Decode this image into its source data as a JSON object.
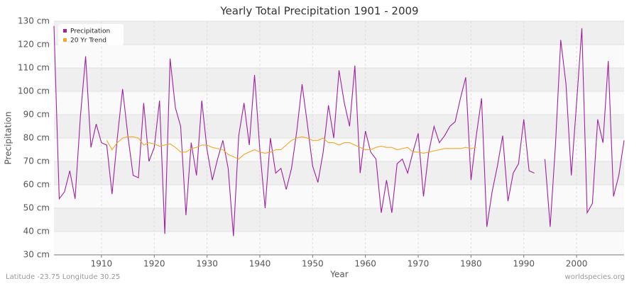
{
  "chart_data": {
    "type": "line",
    "title": "Yearly Total Precipitation 1901 - 2009",
    "x_label": "Year",
    "y_label": "Precipitation",
    "footer_left": "Latitude -23.75 Longitude 30.25",
    "footer_right": "worldspecies.org",
    "x": [
      1901,
      1902,
      1903,
      1904,
      1905,
      1906,
      1907,
      1908,
      1909,
      1910,
      1911,
      1912,
      1913,
      1914,
      1915,
      1916,
      1917,
      1918,
      1919,
      1920,
      1921,
      1922,
      1923,
      1924,
      1925,
      1926,
      1927,
      1928,
      1929,
      1930,
      1931,
      1932,
      1933,
      1934,
      1935,
      1936,
      1937,
      1938,
      1939,
      1940,
      1941,
      1942,
      1943,
      1944,
      1945,
      1946,
      1947,
      1948,
      1949,
      1950,
      1951,
      1952,
      1953,
      1954,
      1955,
      1956,
      1957,
      1958,
      1959,
      1960,
      1961,
      1962,
      1963,
      1964,
      1965,
      1966,
      1967,
      1968,
      1969,
      1970,
      1971,
      1972,
      1973,
      1974,
      1975,
      1976,
      1977,
      1978,
      1979,
      1980,
      1981,
      1982,
      1983,
      1984,
      1985,
      1986,
      1987,
      1988,
      1989,
      1990,
      1991,
      1992,
      1993,
      1994,
      1995,
      1996,
      1997,
      1998,
      1999,
      2000,
      2001,
      2002,
      2003,
      2004,
      2005,
      2006,
      2007,
      2008,
      2009
    ],
    "series": [
      {
        "name": "Precipitation",
        "color": "#a020a0",
        "values": [
          128,
          54,
          57,
          66,
          54,
          89,
          115,
          76,
          86,
          78,
          77,
          56,
          80,
          101,
          81,
          64,
          63,
          95,
          70,
          76,
          96,
          39,
          114,
          93,
          85,
          47,
          78,
          64,
          96,
          75,
          62,
          71,
          79,
          67,
          38,
          81,
          95,
          77,
          107,
          75,
          50,
          80,
          65,
          67,
          58,
          67,
          83,
          103,
          86,
          68,
          61,
          74,
          94,
          80,
          109,
          95,
          85,
          111,
          65,
          83,
          74,
          71,
          48,
          62,
          48,
          69,
          71,
          65,
          74,
          82,
          55,
          74,
          85,
          78,
          81,
          85,
          87,
          97,
          106,
          62,
          81,
          97,
          42,
          57,
          68,
          81,
          53,
          65,
          69,
          88,
          66,
          65,
          null,
          71,
          42,
          77,
          122,
          103,
          64,
          95,
          127,
          48,
          52,
          88,
          78,
          113,
          55,
          64,
          79
        ]
      },
      {
        "name": "20 Yr Trend",
        "color": "#f5a623",
        "values": [
          null,
          null,
          null,
          null,
          null,
          null,
          null,
          null,
          null,
          null,
          79,
          75,
          78,
          80,
          80.5,
          80.5,
          80,
          77,
          78,
          77.5,
          76.5,
          77,
          77.5,
          76,
          74,
          74,
          75.5,
          76,
          77,
          77,
          76,
          75.5,
          75,
          73,
          72,
          71,
          73,
          74,
          75,
          74,
          73.5,
          74,
          75,
          75,
          77,
          79,
          80,
          80.5,
          80,
          79,
          79,
          80,
          78,
          78,
          77,
          78,
          78,
          77,
          76,
          75,
          75,
          76,
          76.5,
          76,
          76,
          75,
          75.5,
          76,
          74,
          74,
          73.5,
          74,
          74.5,
          75,
          75.5,
          75.5,
          75.5,
          75.5,
          76,
          75.5,
          76,
          null,
          null,
          null,
          null,
          null,
          null,
          null,
          null,
          null,
          null,
          null,
          null,
          null,
          null,
          null,
          null,
          null,
          null,
          null,
          null,
          null,
          null,
          null,
          null,
          null,
          null,
          null,
          null
        ]
      }
    ],
    "xlim": [
      1901,
      2009
    ],
    "ylim": [
      30,
      130
    ],
    "xticks": [
      1910,
      1920,
      1930,
      1940,
      1950,
      1960,
      1970,
      1980,
      1990,
      2000
    ],
    "yticks": [
      {
        "value": 30,
        "label": "30 cm"
      },
      {
        "value": 40,
        "label": "40 cm"
      },
      {
        "value": 50,
        "label": "50 cm"
      },
      {
        "value": 60,
        "label": "60 cm"
      },
      {
        "value": 70,
        "label": "70 cm"
      },
      {
        "value": 80,
        "label": "80 cm"
      },
      {
        "value": 90,
        "label": "90 cm"
      },
      {
        "value": 100,
        "label": "100 cm"
      },
      {
        "value": 110,
        "label": "110 cm"
      },
      {
        "value": 120,
        "label": "120 cm"
      },
      {
        "value": 130,
        "label": "130 cm"
      }
    ],
    "grid": true,
    "legend": "upper left"
  }
}
